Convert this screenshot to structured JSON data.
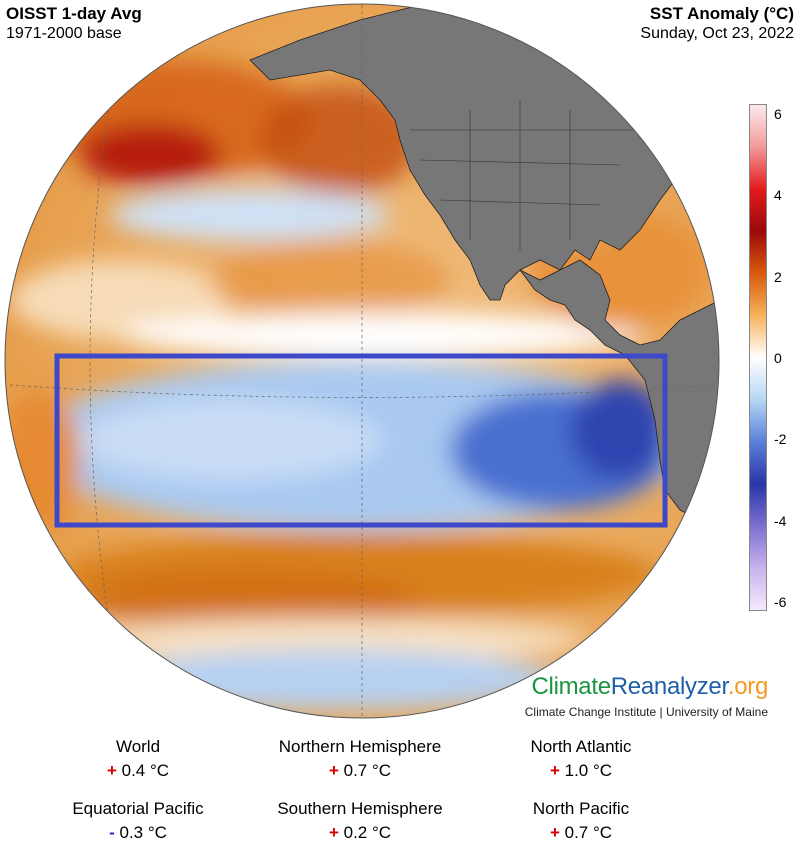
{
  "header": {
    "left_title": "OISST 1-day Avg",
    "left_subtitle": "1971-2000 base",
    "right_title": "SST Anomaly (°C)",
    "right_subtitle": "Sunday, Oct 23, 2022"
  },
  "colorbar": {
    "ticks": [
      "6",
      "4",
      "2",
      "0",
      "-2",
      "-4",
      "-6"
    ],
    "colors": [
      "#fde9ea",
      "#f39a9a",
      "#e31a1c",
      "#9b0a0a",
      "#d85a0d",
      "#f6b25a",
      "#ffffff",
      "#b6d6f5",
      "#5a80d8",
      "#2a35a8",
      "#7b6fd0",
      "#c9b3ee",
      "#f3e9fb"
    ]
  },
  "brand": {
    "logo_part1": "Climate",
    "logo_part2": "Reanalyzer",
    "logo_part3": ".org",
    "logo_colors": {
      "part1": "#1a9641",
      "part2": "#1f5fa8",
      "part3": "#f59b24"
    },
    "subtitle": "Climate Change Institute | University of Maine"
  },
  "stats": [
    {
      "name": "World",
      "sign": "+",
      "value": "0.4 °C"
    },
    {
      "name": "Northern Hemisphere",
      "sign": "+",
      "value": "0.7 °C"
    },
    {
      "name": "North Atlantic",
      "sign": "+",
      "value": "1.0 °C"
    },
    {
      "name": "Equatorial Pacific",
      "sign": "-",
      "value": "0.3 °C"
    },
    {
      "name": "Southern Hemisphere",
      "sign": "+",
      "value": "0.2 °C"
    },
    {
      "name": "North Pacific",
      "sign": "+",
      "value": "0.7 °C"
    }
  ],
  "map": {
    "highlight_region_color": "#3e49c9",
    "land_color": "#777777",
    "warm_color": "#e0892f",
    "cool_color": "#9ec3ef"
  }
}
